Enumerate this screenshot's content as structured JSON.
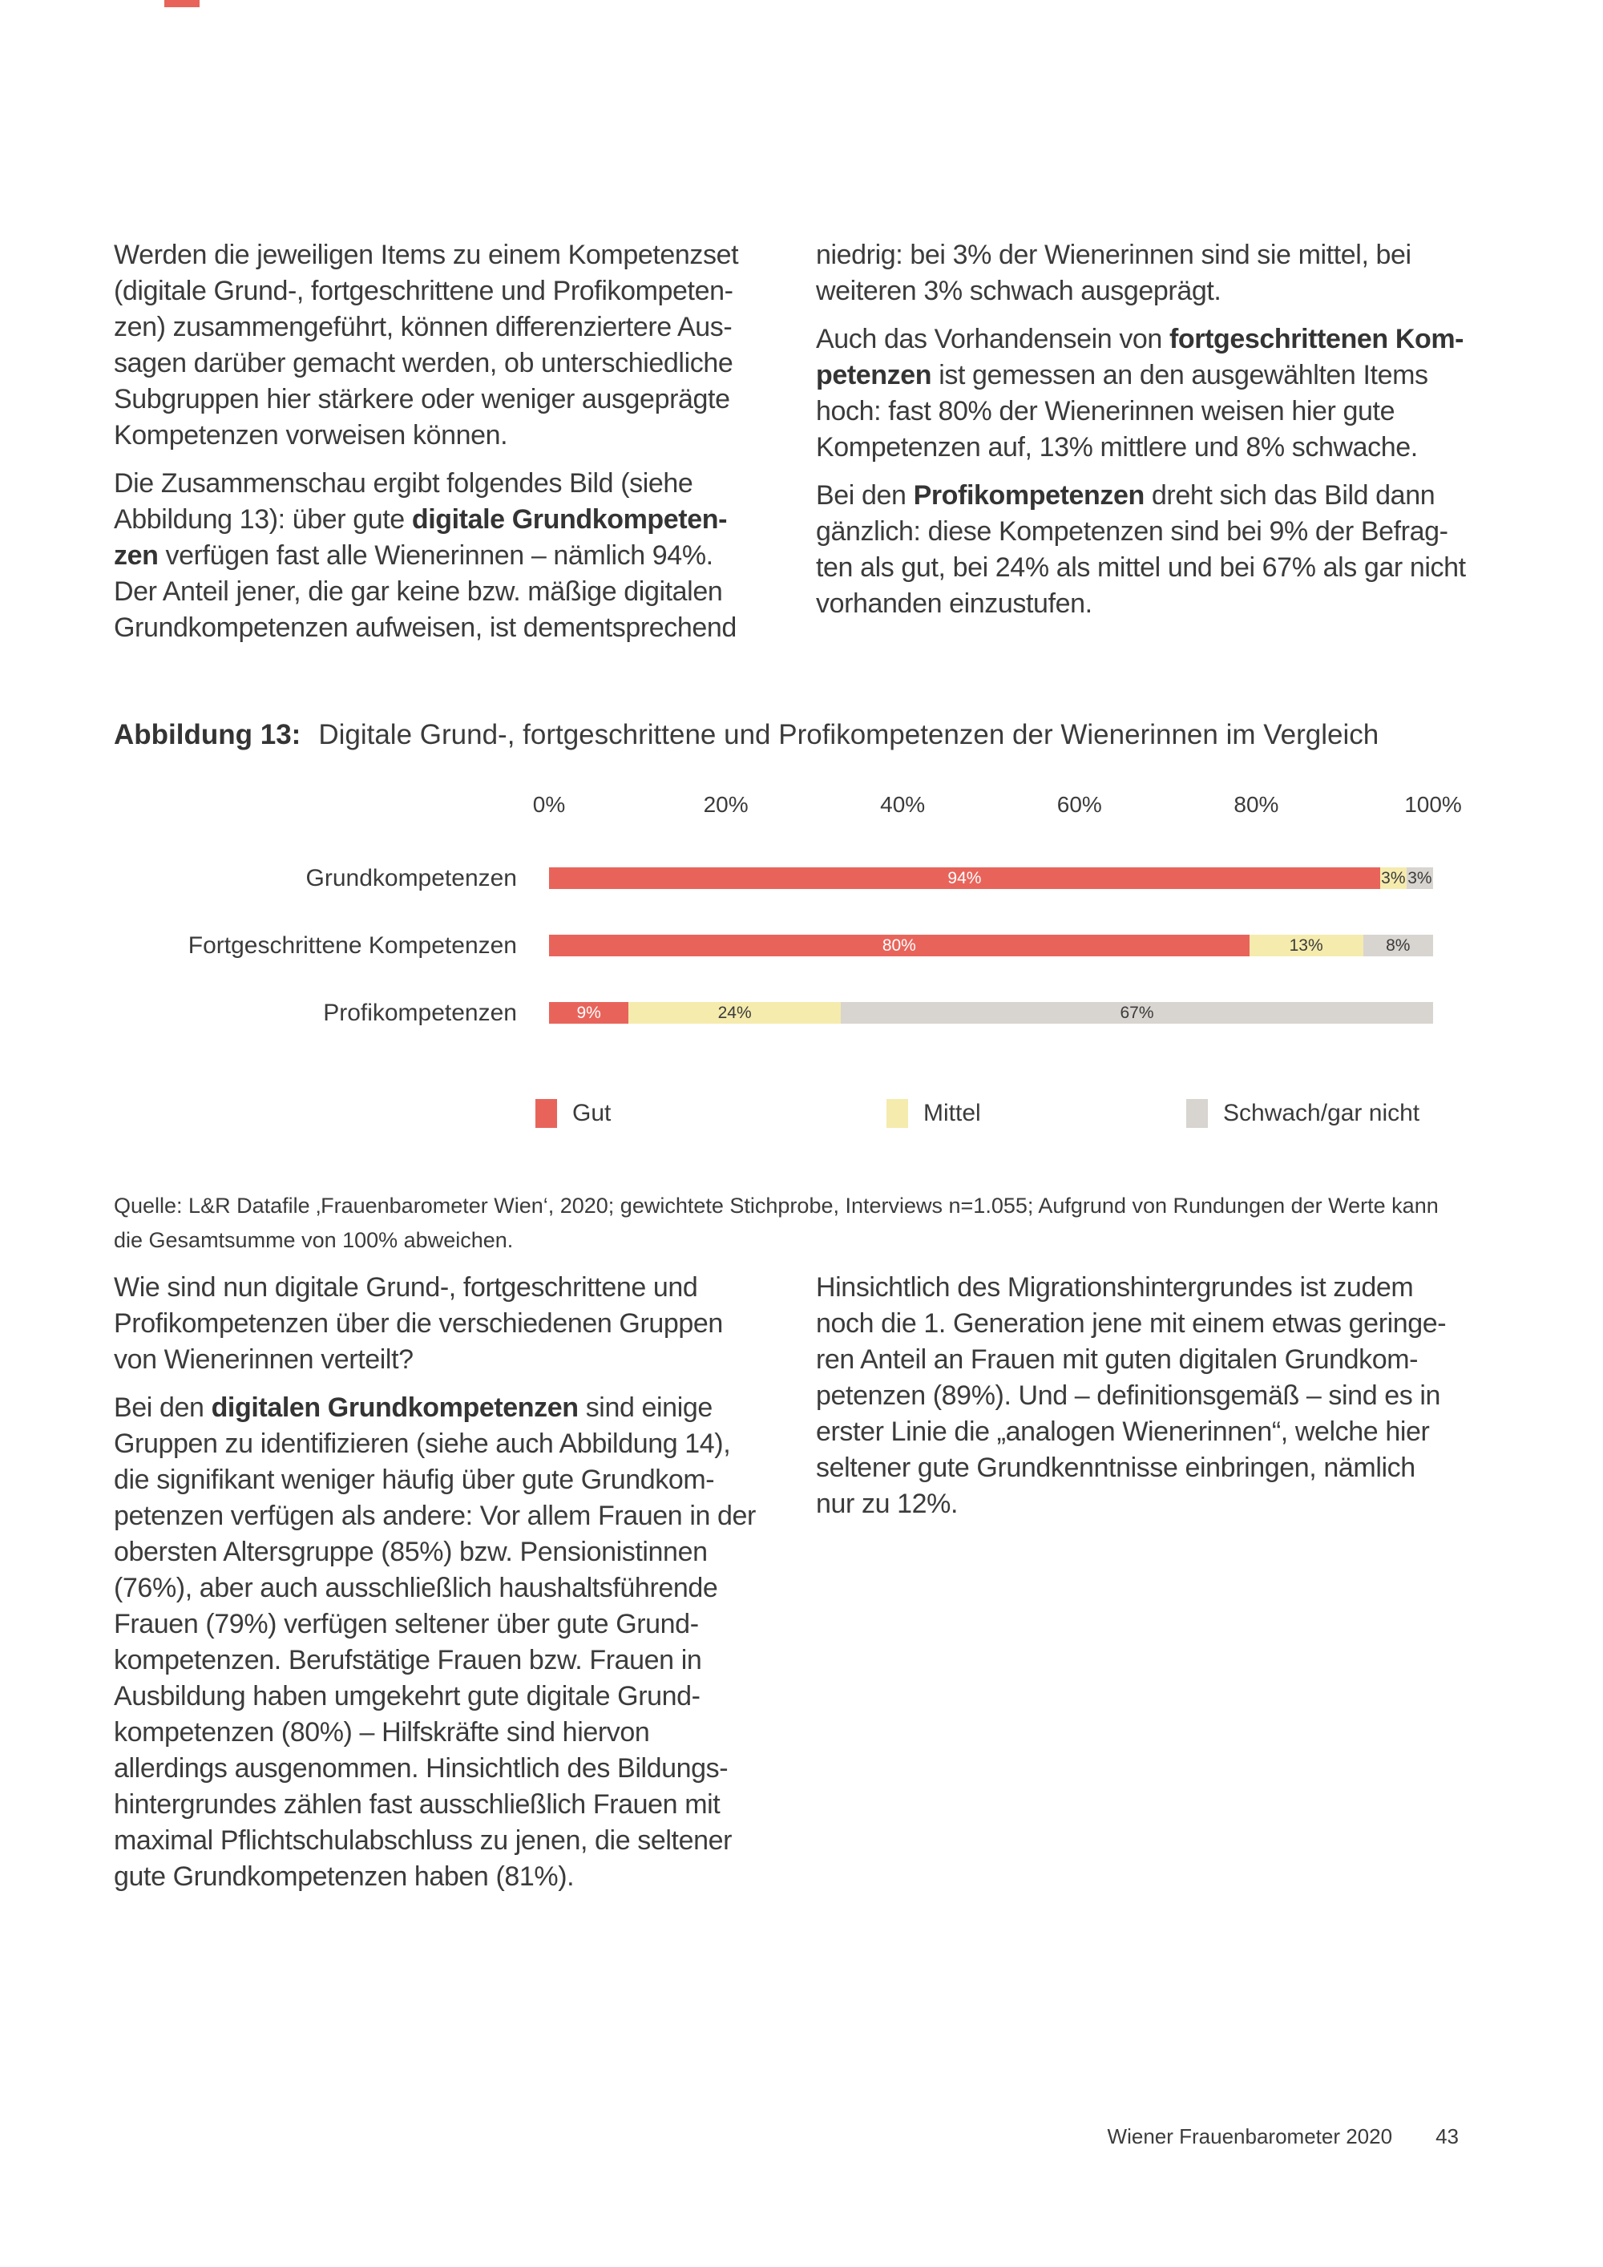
{
  "colors": {
    "red": "#e8645b",
    "yellow": "#f5ebad",
    "gray": "#d8d4d0",
    "text": "#3b3b3b"
  },
  "intro": {
    "left": [
      "Werden die jeweiligen Items zu einem Kompetenzset\n(digitale Grund-, fortgeschrittene und Profikompeten-\nzen) zusammengeführt, können differenziertere Aus-\nsagen darüber gemacht werden, ob unterschiedliche\nSubgruppen hier stärkere oder weniger ausgeprägte\nKompetenzen vorweisen können.",
      "Die Zusammenschau ergibt folgendes Bild (siehe\nAbbildung 13): über gute **digitale Grundkompeten-**\n**zen** verfügen fast alle Wienerinnen – nämlich 94%.\nDer Anteil jener, die gar keine bzw. mäßige digitalen\nGrundkompetenzen aufweisen, ist dementsprechend"
    ],
    "right": [
      "niedrig: bei 3% der Wienerinnen sind sie mittel, bei\nweiteren 3% schwach ausgeprägt.",
      "Auch das Vorhandensein von **fortgeschrittenen Kom-**\n**petenzen** ist gemessen an den ausgewählten Items\nhoch: fast 80% der Wienerinnen weisen hier gute\nKompetenzen auf, 13% mittlere und 8% schwache.",
      "Bei den **Profikompetenzen** dreht sich das Bild dann\ngänzlich: diese Kompetenzen sind bei 9% der Befrag-\nten als gut, bei 24% als mittel und bei 67% als gar nicht\nvorhanden einzustufen."
    ]
  },
  "figure": {
    "label": "Abbildung 13:",
    "title": "Digitale Grund-, fortgeschrittene und Profikompetenzen der Wienerinnen im Vergleich",
    "source": "Quelle: L&R Datafile ‚Frauenbarometer Wien‘, 2020; gewichtete Stichprobe, Interviews n=1.055; Aufgrund von Rundungen der Werte kann\ndie Gesamtsumme von 100% abweichen."
  },
  "chart_data": {
    "type": "bar",
    "orientation": "horizontal",
    "stacked": true,
    "title": "Digitale Grund-, fortgeschrittene und Profikompetenzen der Wienerinnen im Vergleich",
    "categories": [
      "Grundkompetenzen",
      "Fortgeschrittene Kompetenzen",
      "Profikompetenzen"
    ],
    "series": [
      {
        "name": "Gut",
        "color": "#e8645b",
        "label_color": "#ffffff",
        "values": [
          94,
          80,
          9
        ]
      },
      {
        "name": "Mittel",
        "color": "#f5ebad",
        "label_color": "#3b3b3b",
        "values": [
          3,
          13,
          24
        ]
      },
      {
        "name": "Schwach/gar nicht",
        "color": "#d8d4d0",
        "label_color": "#3b3b3b",
        "values": [
          3,
          8,
          67
        ]
      }
    ],
    "x_axis": {
      "tick_labels": [
        "0%",
        "20%",
        "40%",
        "60%",
        "80%",
        "100%"
      ],
      "tick_values": [
        0,
        20,
        40,
        60,
        80,
        100
      ],
      "range": [
        0,
        100
      ]
    },
    "value_suffix": "%",
    "grid": false,
    "legend_position": "bottom"
  },
  "body": {
    "left": [
      "Wie sind nun digitale Grund-, fortgeschrittene und\nProfikompetenzen über die verschiedenen Gruppen\nvon Wienerinnen verteilt?",
      "Bei den **digitalen Grundkompetenzen** sind einige\nGruppen zu identifizieren (siehe auch Abbildung 14),\ndie signifikant weniger häufig über gute Grundkom-\npetenzen verfügen als andere: Vor allem Frauen in der\nobersten Altersgruppe (85%) bzw. Pensionistinnen\n(76%), aber auch ausschließlich haushaltsführende\nFrauen (79%) verfügen seltener über gute Grund-\nkompetenzen. Berufstätige Frauen bzw. Frauen in\nAusbildung haben umgekehrt gute digitale Grund-\nkompetenzen (80%) – Hilfskräfte sind hiervon\nallerdings ausgenommen. Hinsichtlich des Bildungs-\nhintergrundes zählen fast ausschließlich Frauen mit\nmaximal Pflichtschulabschluss zu jenen, die seltener\ngute Grundkompetenzen haben (81%)."
    ],
    "right": [
      "Hinsichtlich des Migrationshintergrundes ist zudem\nnoch die 1. Generation jene mit einem etwas geringe-\nren Anteil an Frauen mit guten digitalen Grundkom-\npetenzen (89%). Und – definitionsgemäß – sind es in\nerster Linie die „analogen Wienerinnen“, welche hier\nseltener gute Grundkenntnisse einbringen, nämlich\nnur zu 12%."
    ]
  },
  "footer": {
    "title": "Wiener Frauenbarometer 2020",
    "page_number": "43"
  }
}
